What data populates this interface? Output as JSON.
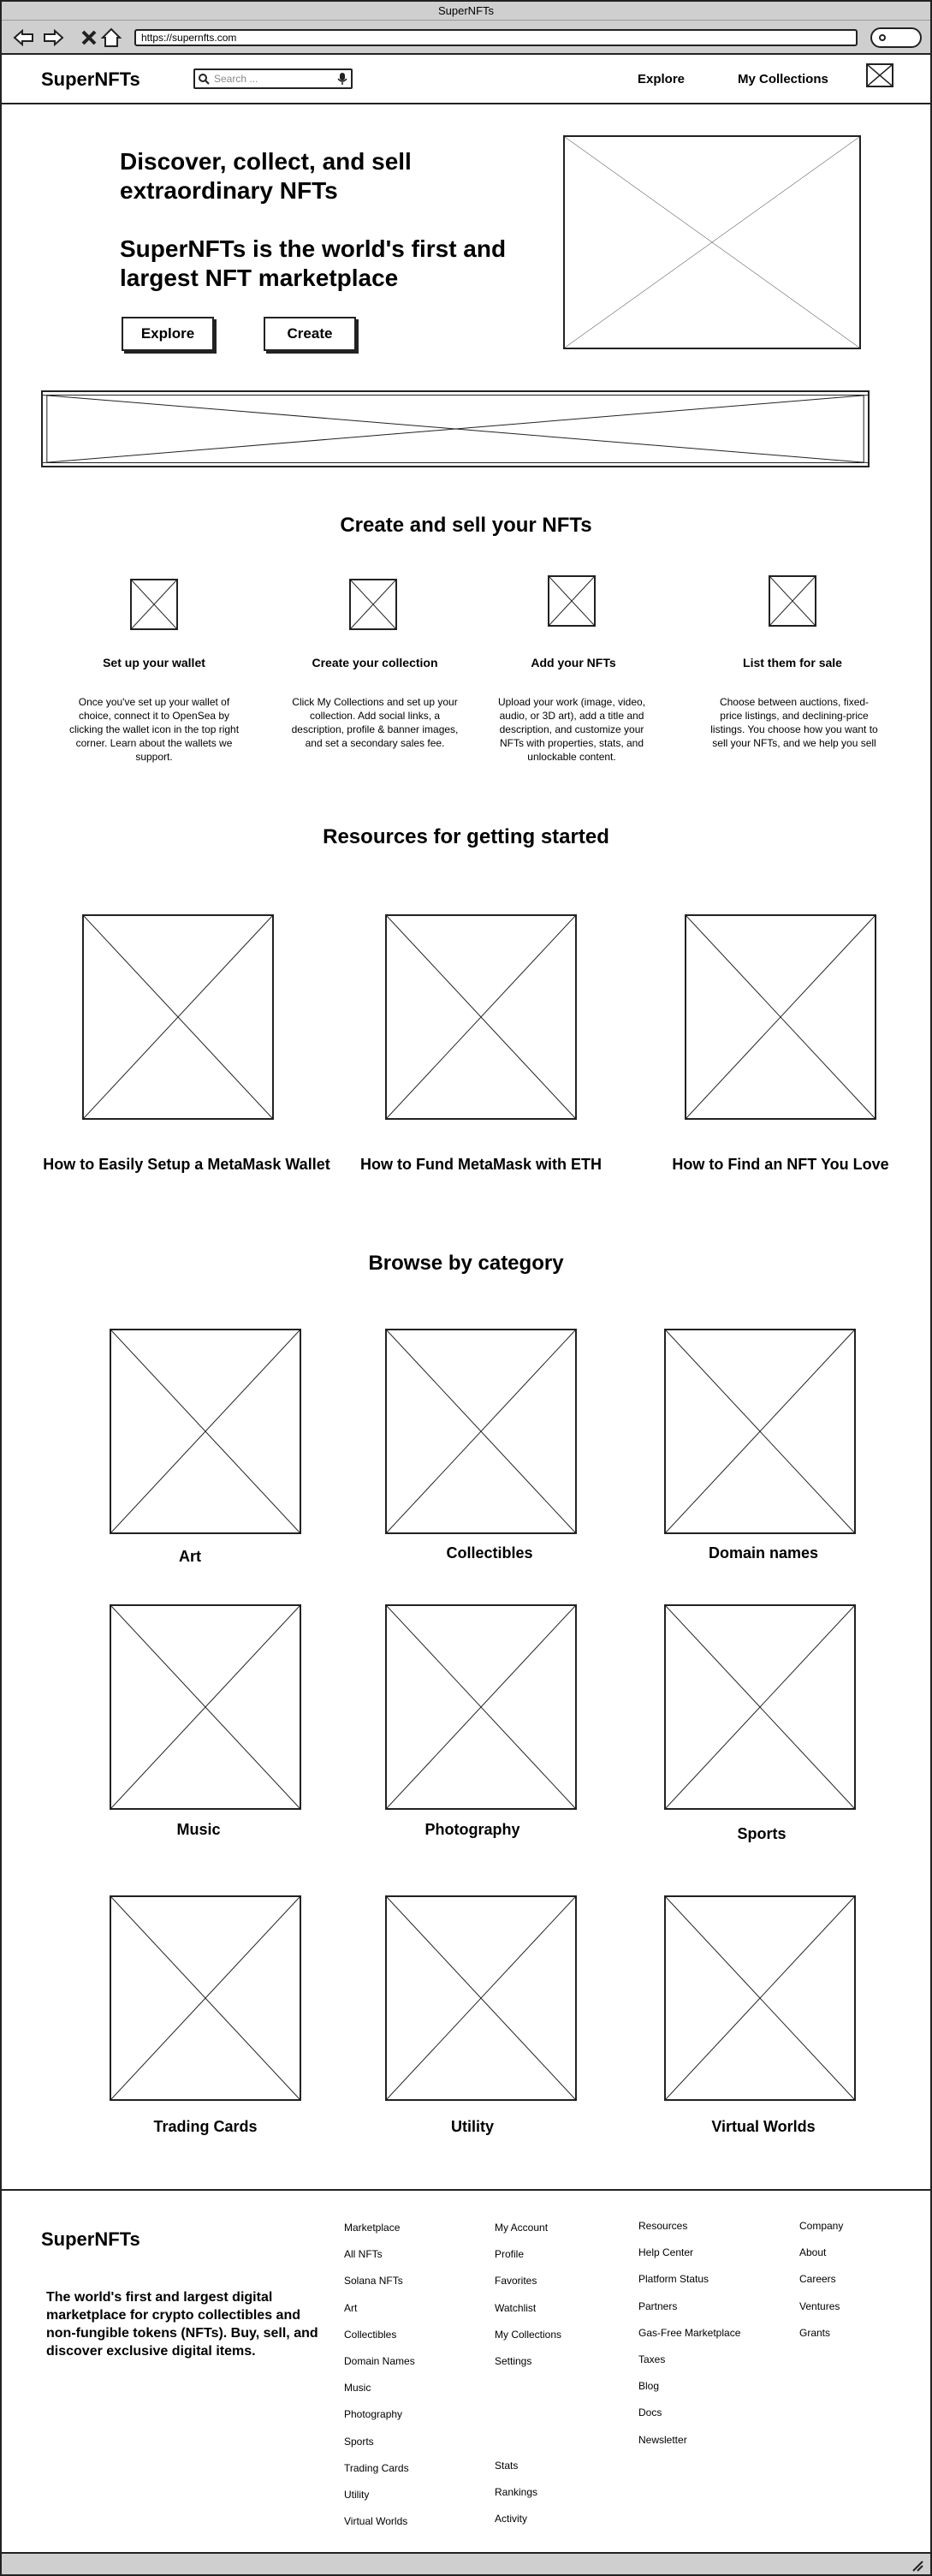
{
  "window": {
    "title": "SuperNFTs"
  },
  "browser": {
    "url": "https://supernfts.com"
  },
  "header": {
    "brand": "SuperNFTs",
    "search_placeholder": "Search ...",
    "nav": [
      "Explore",
      "My Collections"
    ]
  },
  "hero": {
    "headline": "Discover, collect, and sell extraordinary NFTs",
    "subheadline": "SuperNFTs is the world's first and largest NFT marketplace",
    "buttons": [
      "Explore",
      "Create"
    ]
  },
  "create_section": {
    "title": "Create and sell your NFTs",
    "steps": [
      {
        "title": "Set up your wallet",
        "desc": "Once you've set up your wallet of choice, connect it to OpenSea by clicking the wallet icon in the top right corner. Learn about the wallets we support."
      },
      {
        "title": "Create your collection",
        "desc": "Click My Collections and set up your collection. Add social links, a description, profile & banner images, and set a secondary sales fee."
      },
      {
        "title": "Add your NFTs",
        "desc": "Upload your work (image, video, audio, or 3D art), add a title and description, and customize your NFTs with properties, stats, and unlockable content."
      },
      {
        "title": "List them for sale",
        "desc": "Choose between auctions, fixed-price listings, and declining-price listings. You choose how you want to sell your NFTs, and we help you sell"
      }
    ]
  },
  "resources": {
    "title": "Resources for getting started",
    "items": [
      "How to Easily Setup a MetaMask Wallet",
      "How to Fund MetaMask with ETH",
      "How to Find an NFT You Love"
    ]
  },
  "categories": {
    "title": "Browse by category",
    "items": [
      "Art",
      "Collectibles",
      "Domain names",
      "Music",
      "Photography",
      "Sports",
      "Trading Cards",
      "Utility",
      "Virtual Worlds"
    ]
  },
  "footer": {
    "brand": "SuperNFTs",
    "tagline": "The world's first and largest digital marketplace for crypto collectibles and non-fungible tokens (NFTs). Buy, sell, and discover exclusive digital items.",
    "marketplace": [
      "Marketplace",
      "All NFTs",
      "Solana NFTs",
      "Art",
      "Collectibles",
      "Domain Names",
      "Music",
      "Photography",
      "Sports",
      "Trading Cards",
      "Utility",
      "Virtual Worlds"
    ],
    "account": [
      "My Account",
      "Profile",
      "Favorites",
      "Watchlist",
      "My Collections",
      "Settings"
    ],
    "stats": [
      "Stats",
      "Rankings",
      "Activity"
    ],
    "resources": [
      "Resources",
      "Help Center",
      "Platform Status",
      "Partners",
      "Gas-Free Marketplace",
      "Taxes",
      "Blog",
      "Docs",
      "Newsletter"
    ],
    "company": [
      "Company",
      "About",
      "Careers",
      "Ventures",
      "Grants"
    ]
  }
}
